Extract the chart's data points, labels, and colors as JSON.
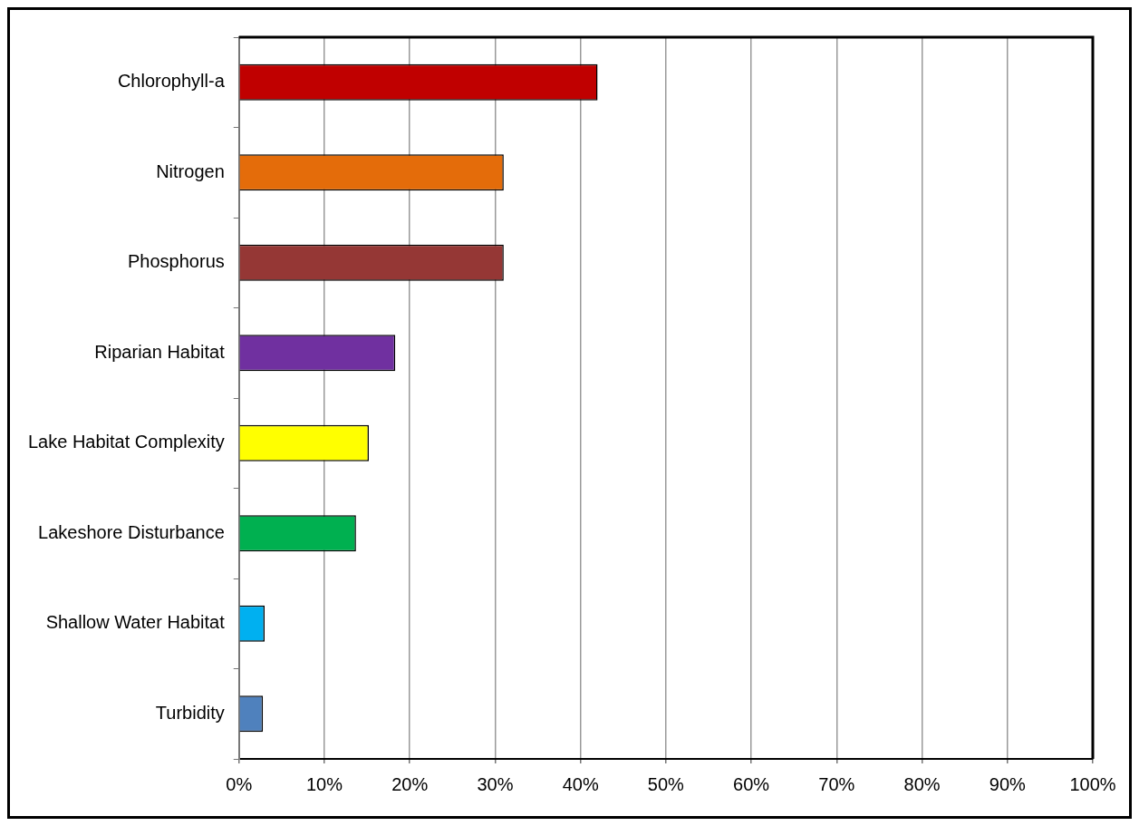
{
  "chart_data": {
    "type": "bar",
    "orientation": "horizontal",
    "categories": [
      "Chlorophyll-a",
      "Nitrogen",
      "Phosphorus",
      "Riparian Habitat",
      "Lake Habitat Complexity",
      "Lakeshore Disturbance",
      "Shallow Water Habitat",
      "Turbidity"
    ],
    "values": [
      42,
      31,
      31,
      18.3,
      15.2,
      13.7,
      3.0,
      2.8
    ],
    "colors": [
      "#c00000",
      "#e46c0a",
      "#953735",
      "#7030a0",
      "#ffff00",
      "#00b050",
      "#00b0f0",
      "#4f81bd"
    ],
    "xlim": [
      0,
      100
    ],
    "xticks": [
      {
        "value": 0,
        "label": "0%"
      },
      {
        "value": 10,
        "label": "10%"
      },
      {
        "value": 20,
        "label": "20%"
      },
      {
        "value": 30,
        "label": "30%"
      },
      {
        "value": 40,
        "label": "40%"
      },
      {
        "value": 50,
        "label": "50%"
      },
      {
        "value": 60,
        "label": "60%"
      },
      {
        "value": 70,
        "label": "70%"
      },
      {
        "value": 80,
        "label": "80%"
      },
      {
        "value": 90,
        "label": "90%"
      },
      {
        "value": 100,
        "label": "100%"
      }
    ],
    "grid": "x",
    "legend": false
  }
}
